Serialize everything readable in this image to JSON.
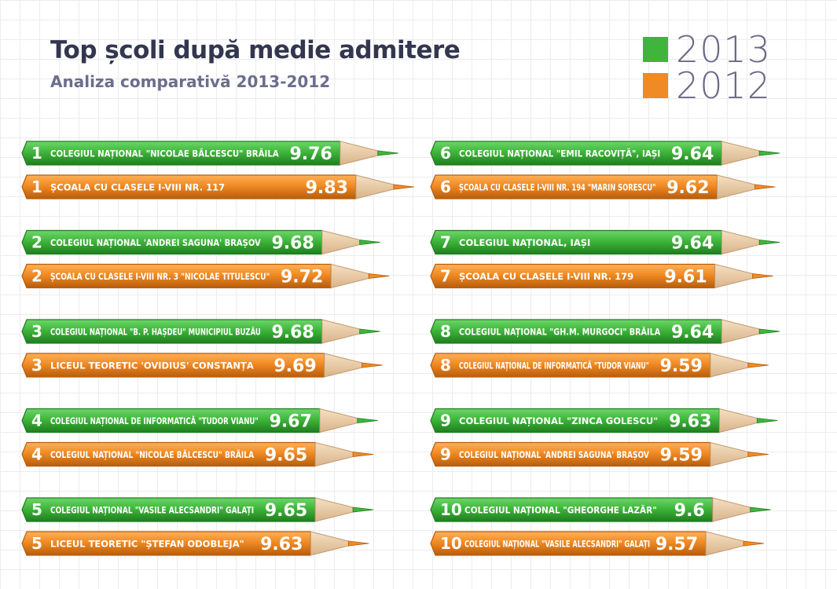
{
  "chart_data": {
    "type": "bar",
    "title": "Top școli după medie admitere",
    "subtitle": "Analiza comparativă 2013-2012",
    "series": [
      {
        "name": "2013",
        "color": "#3fb63b",
        "entries": [
          {
            "rank": "1",
            "school": "COLEGIUL NAȚIONAL \"NICOLAE BĂLCESCU\" BRĂILA",
            "value": 9.76
          },
          {
            "rank": "2",
            "school": "COLEGIUL NAȚIONAL 'ANDREI SAGUNA' BRAȘOV",
            "value": 9.68
          },
          {
            "rank": "3",
            "school": "COLEGIUL NAȚIONAL \"B. P. HAȘDEU\" MUNICIPIUL BUZĂU",
            "value": 9.68
          },
          {
            "rank": "4",
            "school": "COLEGIUL NAȚIONAL DE INFORMATICĂ \"TUDOR VIANU\"",
            "value": 9.67
          },
          {
            "rank": "5",
            "school": "COLEGIUL NAȚIONAL \"VASILE ALECSANDRI\" GALAȚI",
            "value": 9.65
          },
          {
            "rank": "6",
            "school": "COLEGIUL NAȚIONAL \"EMIL RACOVIȚĂ\", IAȘI",
            "value": 9.64
          },
          {
            "rank": "7",
            "school": "COLEGIUL NAȚIONAL, IAȘI",
            "value": 9.64
          },
          {
            "rank": "8",
            "school": "COLEGIUL NAȚIONAL \"GH.M. MURGOCI\" BRĂILA",
            "value": 9.64
          },
          {
            "rank": "9",
            "school": "COLEGIUL NAȚIONAL  \"ZINCA GOLESCU\"",
            "value": 9.63
          },
          {
            "rank": "10",
            "school": "COLEGIUL NAȚIONAL \"GHEORGHE LAZĂR\"",
            "value": 9.6
          }
        ]
      },
      {
        "name": "2012",
        "color": "#f08a24",
        "entries": [
          {
            "rank": "1",
            "school": "ȘCOALA CU CLASELE I-VIII NR. 117",
            "value": 9.83
          },
          {
            "rank": "2",
            "school": "ȘCOALA CU CLASELE I-VIII NR.   3 \"NICOLAE TITULESCU\"",
            "value": 9.72
          },
          {
            "rank": "3",
            "school": "LICEUL TEORETIC 'OVIDIUS' CONSTANȚA",
            "value": 9.69
          },
          {
            "rank": "4",
            "school": "COLEGIUL NAȚIONAL \"NICOLAE BĂLCESCU\" BRĂILA",
            "value": 9.65
          },
          {
            "rank": "5",
            "school": "LICEUL TEORETIC \"ȘTEFAN ODOBLEJA\"",
            "value": 9.63
          },
          {
            "rank": "6",
            "school": "ȘCOALA CU CLASELE I-VIII NR. 194 \"MARIN SORESCU\"",
            "value": 9.62
          },
          {
            "rank": "7",
            "school": "ȘCOALA CU CLASELE I-VIII NR. 179",
            "value": 9.61
          },
          {
            "rank": "8",
            "school": "COLEGIUL NAȚIONAL DE INFORMATICĂ \"TUDOR VIANU\"",
            "value": 9.59
          },
          {
            "rank": "9",
            "school": "COLEGIUL NAȚIONAL 'ANDREI SAGUNA' BRAȘOV",
            "value": 9.59
          },
          {
            "rank": "10",
            "school": "COLEGIUL NAȚIONAL \"VASILE ALECSANDRI\" GALAȚI",
            "value": 9.57
          }
        ]
      }
    ],
    "legend": "top-right",
    "grid": true
  }
}
